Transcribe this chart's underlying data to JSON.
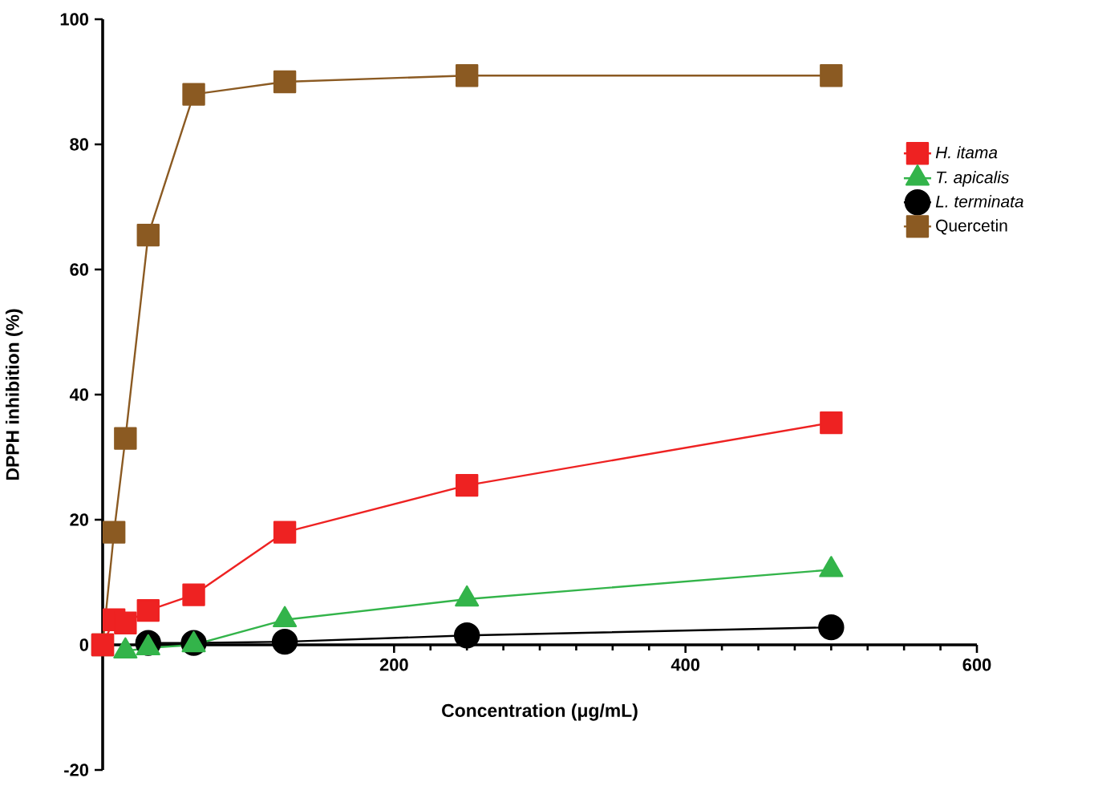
{
  "chart_data": {
    "type": "line",
    "xlabel": "Concentration (μg/mL)",
    "ylabel": "DPPH inhibition (%)",
    "xlim": [
      0,
      600
    ],
    "xticks": [
      200,
      400,
      600
    ],
    "ylim": [
      -20,
      100
    ],
    "yticks": [
      -20,
      0,
      20,
      40,
      60,
      80,
      100
    ],
    "grid": false,
    "legend": "right",
    "series": [
      {
        "name": "*H. itama*",
        "color": "#ee2222",
        "marker": "square",
        "x": [
          0,
          7.8,
          15.6,
          31.25,
          62.5,
          125,
          250,
          500
        ],
        "values": [
          0,
          4,
          3.5,
          5.5,
          8,
          18,
          25.5,
          35.5
        ]
      },
      {
        "name": "*T. apicalis*",
        "color": "#33b44a",
        "marker": "triangle",
        "x": [
          15.6,
          31.25,
          62.5,
          125,
          250,
          500
        ],
        "values": [
          -1,
          -0.5,
          0,
          4,
          7.3,
          12
        ]
      },
      {
        "name": "*L. terminata*",
        "color": "#000000",
        "marker": "circle",
        "x": [
          31.25,
          62.5,
          125,
          250,
          500
        ],
        "values": [
          0.3,
          0.3,
          0.5,
          1.5,
          2.8
        ]
      },
      {
        "name": "Quercetin",
        "color": "#8b5a22",
        "marker": "square",
        "x": [
          0,
          7.8,
          15.6,
          31.25,
          62.5,
          125,
          250,
          500
        ],
        "values": [
          0,
          18,
          33,
          65.5,
          88,
          90,
          91,
          91
        ]
      }
    ]
  }
}
